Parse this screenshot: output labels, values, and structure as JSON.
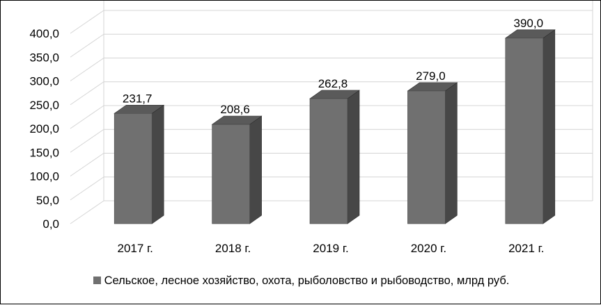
{
  "chart_data": {
    "type": "bar",
    "style": "3d-column",
    "categories": [
      "2017 г.",
      "2018 г.",
      "2019 г.",
      "2020 г.",
      "2021 г."
    ],
    "series": [
      {
        "name": "Сельское, лесное хозяйство, охота, рыболовство и рыбоводство, млрд руб.",
        "values": [
          231.7,
          208.6,
          262.8,
          279.0,
          390.0
        ],
        "value_labels": [
          "231,7",
          "208,6",
          "262,8",
          "279,0",
          "390,0"
        ],
        "color": "#707070"
      }
    ],
    "ylim": [
      0,
      400
    ],
    "yticks": [
      0,
      50,
      100,
      150,
      200,
      250,
      300,
      350,
      400
    ],
    "ytick_labels": [
      "0,0",
      "50,0",
      "100,0",
      "150,0",
      "200,0",
      "250,0",
      "300,0",
      "350,0",
      "400,0"
    ],
    "grid": true,
    "legend_position": "bottom"
  }
}
